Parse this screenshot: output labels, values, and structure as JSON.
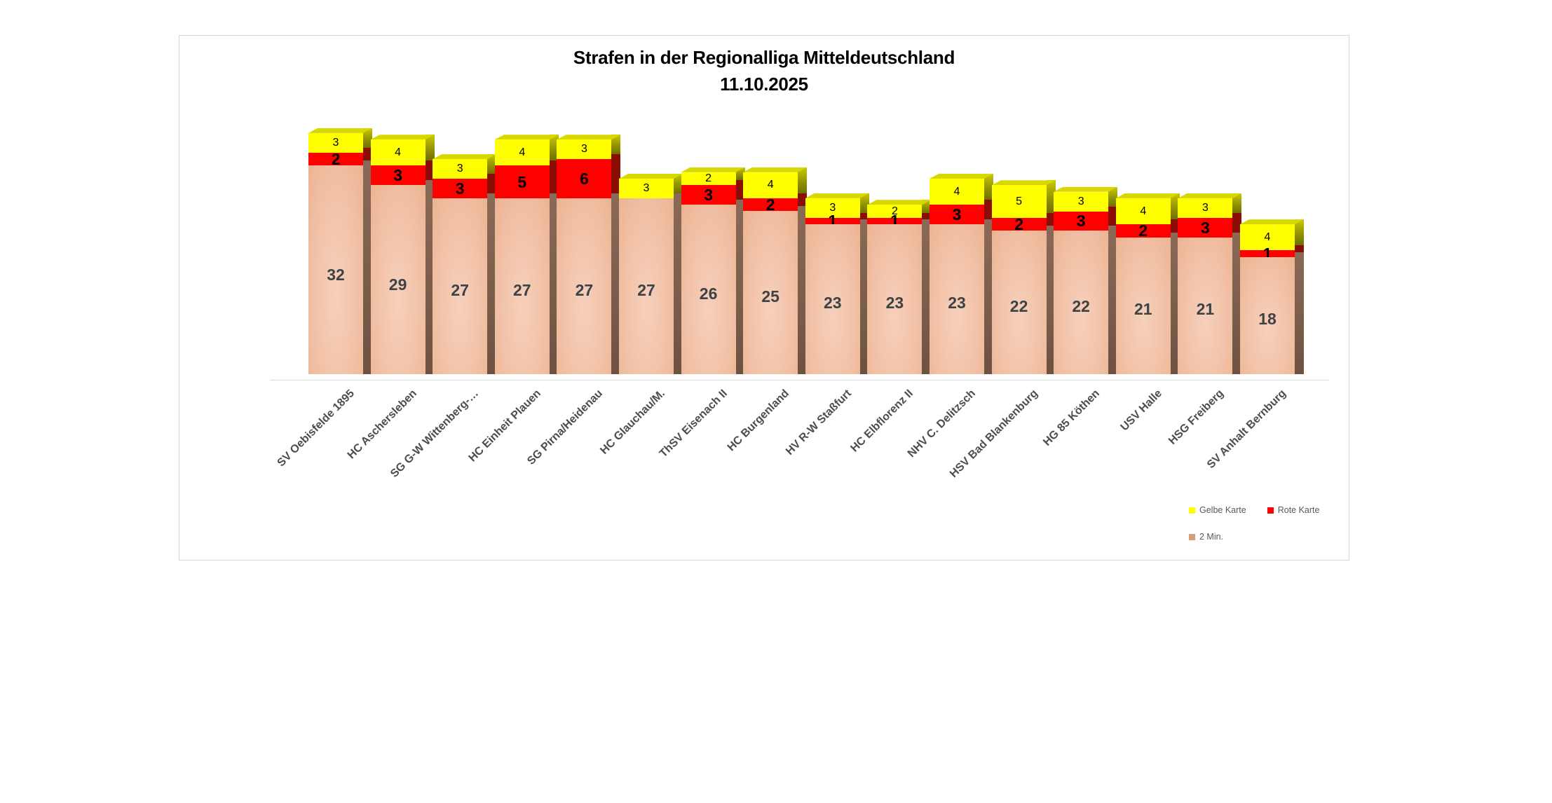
{
  "title": {
    "line1": "Strafen in der Regionalliga Mitteldeutschland",
    "line2": "11.10.2025"
  },
  "legend": {
    "items": [
      {
        "label": "Gelbe Karte",
        "color": "#ffff00"
      },
      {
        "label": "Rote Karte",
        "color": "#ff0000"
      },
      {
        "label": "2 Min.",
        "color": "#d99b7c"
      }
    ]
  },
  "chart_data": {
    "type": "bar",
    "stacked": true,
    "style": "3d-column",
    "title": "Strafen in der Regionalliga Mitteldeutschland",
    "subtitle": "11.10.2025",
    "categories": [
      "SV Oebisfelde 1895",
      "HC Aschersleben",
      "SG G-W Wittenberg-…",
      "HC Einheit Plauen",
      "SG Pirna/Heidenau",
      "HC Glauchau/M.",
      "ThSV Eisenach II",
      "HC Burgenland",
      "HV R-W Staßfurt",
      "HC Elbflorenz II",
      "NHV C. Delitzsch",
      "HSV Bad Blankenburg",
      "HG 85 Köthen",
      "USV Halle",
      "HSG Freiberg",
      "SV Anhalt Bernburg"
    ],
    "series": [
      {
        "name": "2 Min.",
        "color": "#f1c0a4",
        "values": [
          32,
          29,
          27,
          27,
          27,
          27,
          26,
          25,
          23,
          23,
          23,
          22,
          22,
          21,
          21,
          18
        ]
      },
      {
        "name": "Rote Karte",
        "color": "#ff0000",
        "values": [
          2,
          3,
          3,
          5,
          6,
          0,
          3,
          2,
          1,
          1,
          3,
          2,
          3,
          2,
          3,
          1
        ]
      },
      {
        "name": "Gelbe Karte",
        "color": "#ffff00",
        "values": [
          3,
          4,
          3,
          4,
          3,
          3,
          2,
          4,
          3,
          2,
          4,
          5,
          3,
          4,
          3,
          4
        ]
      }
    ],
    "value_labels": "all non-zero segments labeled",
    "legend_position": "bottom-right",
    "y_axis_shown": false,
    "x_baseline_shown": true
  }
}
